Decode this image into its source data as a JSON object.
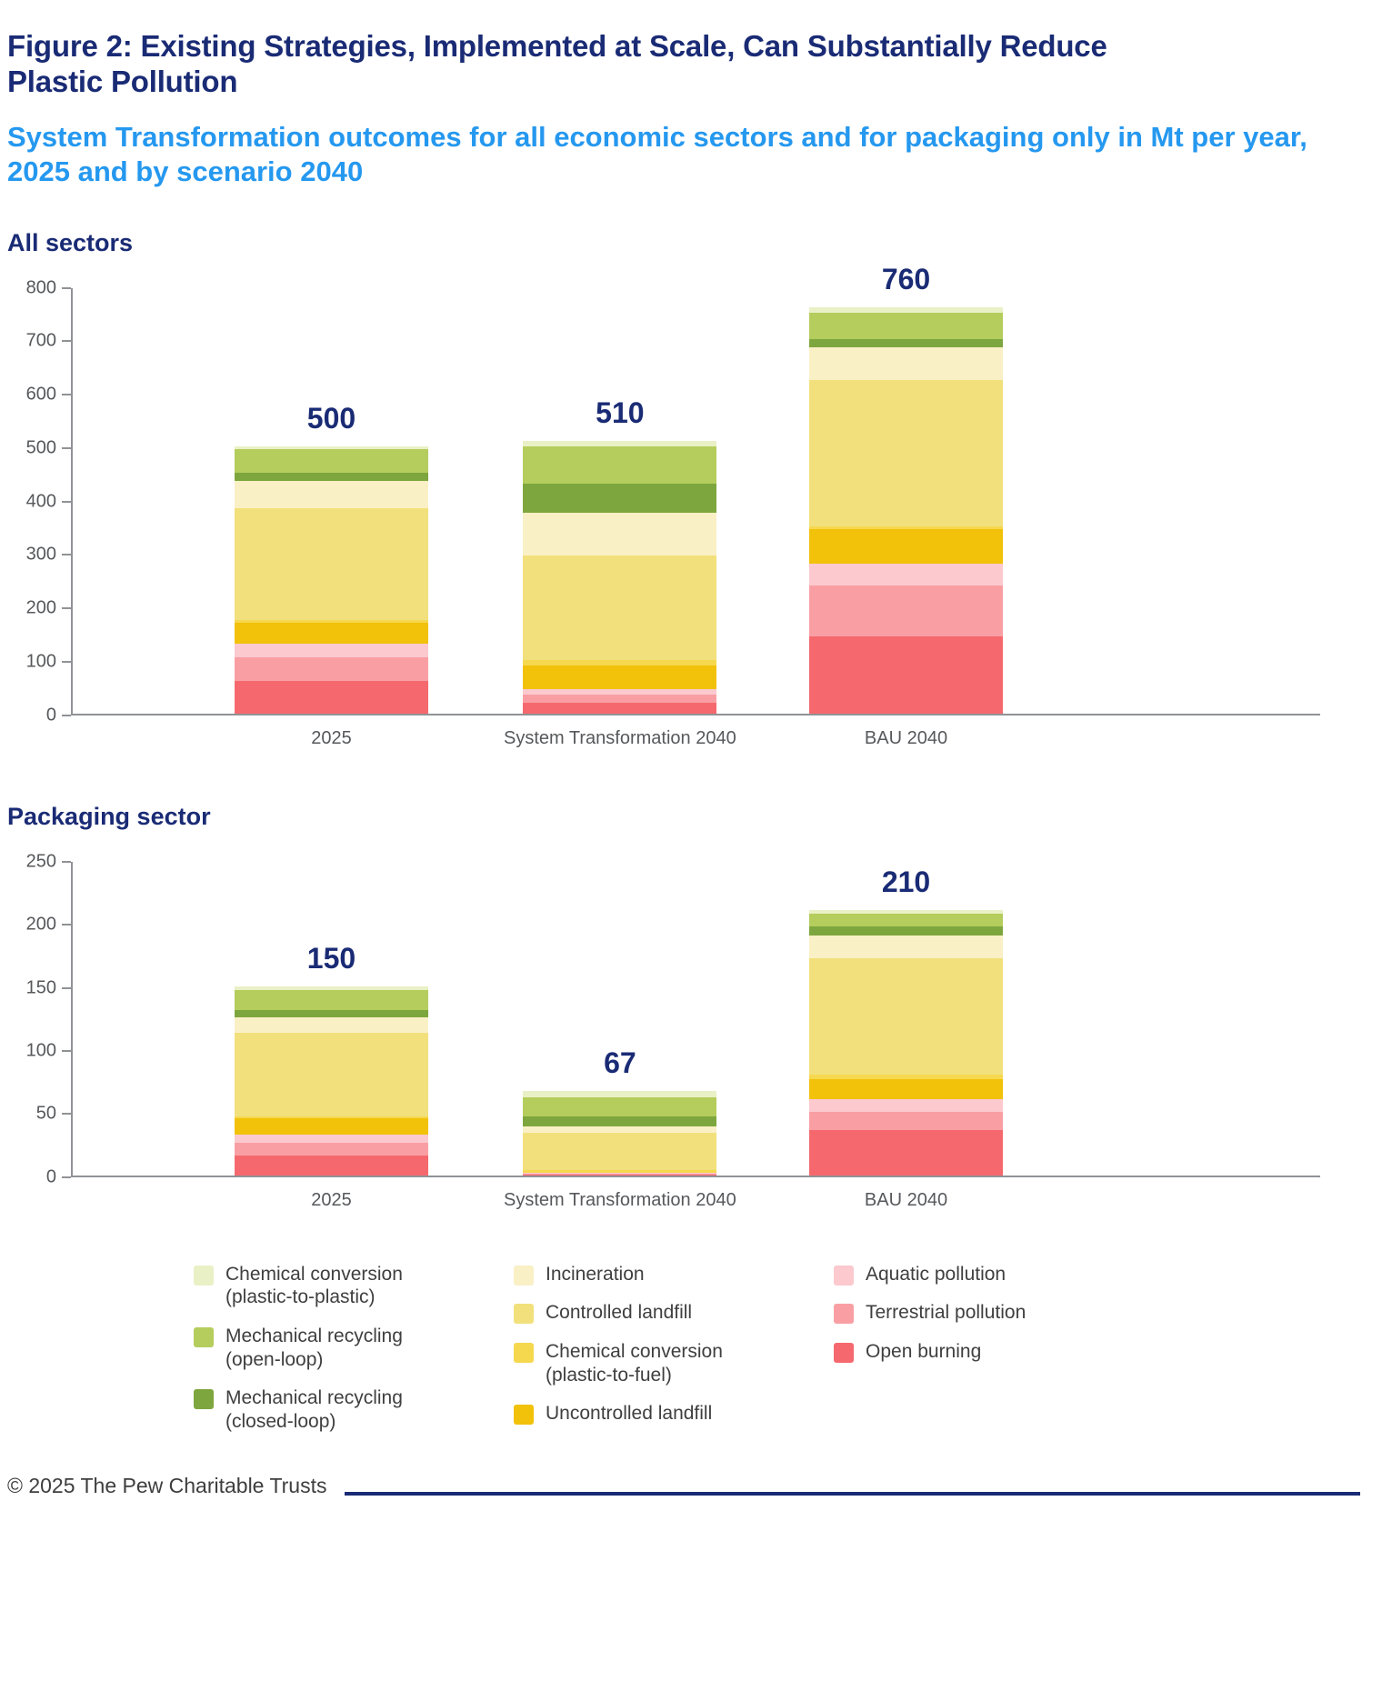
{
  "header": {
    "title": "Figure 2: Existing Strategies, Implemented at Scale, Can Substantially Reduce Plastic Pollution",
    "subtitle": "System Transformation outcomes for all economic sectors and for packaging only in Mt per year, 2025 and by scenario 2040"
  },
  "chart_data": [
    {
      "type": "bar",
      "stacked": true,
      "heading": "All sectors",
      "unit": "Mt per year",
      "categories": [
        "2025",
        "System Transformation 2040",
        "BAU 2040"
      ],
      "totals": [
        500,
        510,
        760
      ],
      "ylim": [
        0,
        800
      ],
      "ytick_step": 100,
      "grid": false,
      "legend_position": "bottom-shared",
      "series": [
        {
          "name": "Open burning",
          "color": "#f5696e",
          "values": [
            60,
            20,
            145
          ]
        },
        {
          "name": "Terrestrial pollution",
          "color": "#f99fa4",
          "values": [
            45,
            15,
            95
          ]
        },
        {
          "name": "Aquatic pollution",
          "color": "#fbc9ce",
          "values": [
            25,
            10,
            40
          ]
        },
        {
          "name": "Uncontrolled landfill",
          "color": "#f2c10a",
          "values": [
            40,
            45,
            65
          ]
        },
        {
          "name": "Chemical conversion (plastic-to-fuel)",
          "color": "#f6d84f",
          "values": [
            5,
            10,
            5
          ]
        },
        {
          "name": "Controlled landfill",
          "color": "#f2e07c",
          "values": [
            210,
            195,
            275
          ]
        },
        {
          "name": "Incineration",
          "color": "#faf0c6",
          "values": [
            50,
            80,
            60
          ]
        },
        {
          "name": "Mechanical recycling (closed-loop)",
          "color": "#7ea63e",
          "values": [
            15,
            55,
            15
          ]
        },
        {
          "name": "Mechanical recycling (open-loop)",
          "color": "#b4cd5d",
          "values": [
            45,
            70,
            50
          ]
        },
        {
          "name": "Chemical conversion (plastic-to-plastic)",
          "color": "#eaf0c6",
          "values": [
            5,
            10,
            10
          ]
        }
      ]
    },
    {
      "type": "bar",
      "stacked": true,
      "heading": "Packaging sector",
      "unit": "Mt per year",
      "categories": [
        "2025",
        "System Transformation 2040",
        "BAU 2040"
      ],
      "totals": [
        150,
        67,
        210
      ],
      "ylim": [
        0,
        250
      ],
      "ytick_step": 50,
      "grid": false,
      "legend_position": "bottom-shared",
      "series": [
        {
          "name": "Open burning",
          "color": "#f5696e",
          "values": [
            16,
            0.5,
            36
          ]
        },
        {
          "name": "Terrestrial pollution",
          "color": "#f99fa4",
          "values": [
            10,
            0.5,
            14
          ]
        },
        {
          "name": "Aquatic pollution",
          "color": "#fbc9ce",
          "values": [
            6,
            1,
            10
          ]
        },
        {
          "name": "Uncontrolled landfill",
          "color": "#f2c10a",
          "values": [
            13,
            0,
            16
          ]
        },
        {
          "name": "Chemical conversion (plastic-to-fuel)",
          "color": "#f6d84f",
          "values": [
            2,
            2,
            4
          ]
        },
        {
          "name": "Controlled landfill",
          "color": "#f2e07c",
          "values": [
            66,
            30,
            92
          ]
        },
        {
          "name": "Incineration",
          "color": "#faf0c6",
          "values": [
            12,
            5,
            18
          ]
        },
        {
          "name": "Mechanical recycling (closed-loop)",
          "color": "#7ea63e",
          "values": [
            6,
            8,
            7
          ]
        },
        {
          "name": "Mechanical recycling (open-loop)",
          "color": "#b4cd5d",
          "values": [
            16,
            15,
            10
          ]
        },
        {
          "name": "Chemical conversion (plastic-to-plastic)",
          "color": "#eaf0c6",
          "values": [
            3,
            5,
            3
          ]
        }
      ]
    }
  ],
  "legend": {
    "columns": [
      [
        {
          "label": "Chemical conversion\n(plastic-to-plastic)",
          "color": "#eaf0c6"
        },
        {
          "label": "Mechanical recycling\n(open-loop)",
          "color": "#b4cd5d"
        },
        {
          "label": "Mechanical recycling\n(closed-loop)",
          "color": "#7ea63e"
        }
      ],
      [
        {
          "label": "Incineration",
          "color": "#faf0c6"
        },
        {
          "label": "Controlled landfill",
          "color": "#f2e07c"
        },
        {
          "label": "Chemical conversion\n(plastic-to-fuel)",
          "color": "#f6d84f"
        },
        {
          "label": "Uncontrolled landfill",
          "color": "#f2c10a"
        }
      ],
      [
        {
          "label": "Aquatic pollution",
          "color": "#fbc9ce"
        },
        {
          "label": "Terrestrial pollution",
          "color": "#f99fa4"
        },
        {
          "label": "Open burning",
          "color": "#f5696e"
        }
      ]
    ]
  },
  "colors": {
    "title_navy": "#1a2b75",
    "subtitle_blue": "#2598ef",
    "axis_gray": "#909296",
    "label_gray": "#56585b"
  },
  "footer": {
    "copyright": "© 2025 The Pew Charitable Trusts"
  }
}
